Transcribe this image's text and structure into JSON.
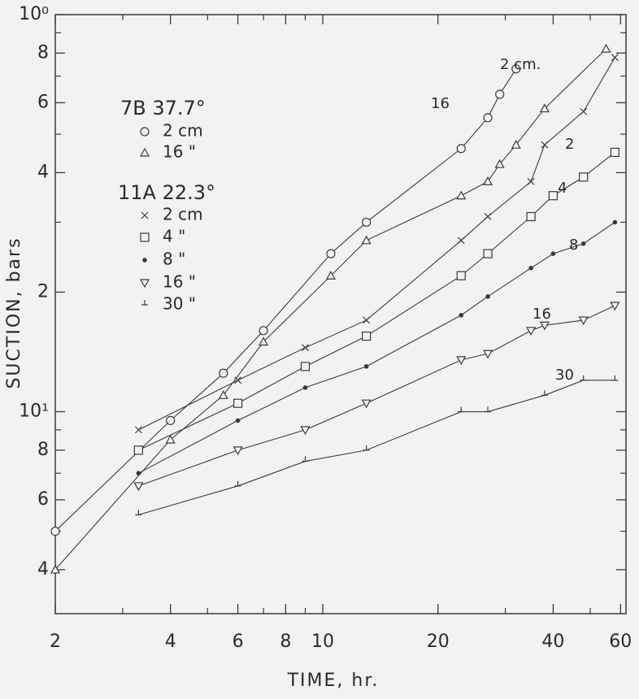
{
  "chart_data": {
    "type": "line",
    "x_label": "TIME, hr.",
    "y_label": "SUCTION, bars",
    "log_x": true,
    "log_y": true,
    "xlim": [
      2,
      62
    ],
    "ylim": [
      3.1,
      100
    ],
    "xticks": [
      2,
      4,
      6,
      8,
      10,
      20,
      40,
      60
    ],
    "xticks_minor": [
      3,
      5,
      7,
      9,
      30,
      50
    ],
    "yticks": [
      4,
      6,
      8,
      {
        "value": 10,
        "label": "10¹"
      },
      {
        "value": 20,
        "label": "2"
      },
      {
        "value": 40,
        "label": "4"
      },
      {
        "value": 60,
        "label": "6"
      },
      {
        "value": 80,
        "label": "8"
      },
      {
        "value": 100,
        "label": "10⁰"
      }
    ],
    "yticks_minor": [
      5,
      7,
      9,
      30,
      50,
      70,
      90
    ],
    "legend_headings": [
      "7B   37.7°",
      "11A   22.3°"
    ],
    "curve_labels": [
      "2 cm.",
      "16",
      "2",
      "4",
      "8",
      "16",
      "30"
    ],
    "color": "#3a3a3a",
    "series": [
      {
        "name": "2 cm",
        "marker": "circle",
        "x": [
          2,
          4,
          5.5,
          7,
          10.5,
          13,
          23,
          27,
          29,
          32
        ],
        "values": [
          5,
          9.5,
          12.5,
          16,
          25,
          30,
          46,
          55,
          63,
          73
        ]
      },
      {
        "name": "16  \"",
        "marker": "triangle",
        "x": [
          2,
          4,
          5.5,
          7,
          10.5,
          13,
          23,
          27,
          29,
          32,
          38,
          55
        ],
        "values": [
          4,
          8.5,
          11,
          15,
          22,
          27,
          35,
          38,
          42,
          47,
          58,
          82
        ]
      },
      {
        "name": "2 cm",
        "marker": "x",
        "x": [
          3.3,
          6,
          9,
          13,
          23,
          27,
          35,
          38,
          48,
          58
        ],
        "values": [
          9,
          12,
          14.5,
          17,
          27,
          31,
          38,
          47,
          57,
          78
        ]
      },
      {
        "name": "4   \"",
        "marker": "square",
        "x": [
          3.3,
          6,
          9,
          13,
          23,
          27,
          35,
          40,
          48,
          58
        ],
        "values": [
          8,
          10.5,
          13,
          15.5,
          22,
          25,
          31,
          35,
          39,
          45
        ]
      },
      {
        "name": "8   \"",
        "marker": "dot",
        "x": [
          3.3,
          6,
          9,
          13,
          23,
          27,
          35,
          40,
          48,
          58
        ],
        "values": [
          7,
          9.5,
          11.5,
          13,
          17.5,
          19.5,
          23,
          25,
          26.5,
          30
        ]
      },
      {
        "name": "16  \"",
        "marker": "triangle-down",
        "x": [
          3.3,
          6,
          9,
          13,
          23,
          27,
          35,
          38,
          48,
          58
        ],
        "values": [
          6.5,
          8,
          9,
          10.5,
          13.5,
          14,
          16,
          16.5,
          17,
          18.5
        ]
      },
      {
        "name": "30  \"",
        "marker": "tick",
        "x": [
          3.3,
          6,
          9,
          13,
          23,
          27,
          38,
          48,
          58
        ],
        "values": [
          5.5,
          6.5,
          7.5,
          8,
          10,
          10,
          11,
          12,
          12
        ]
      }
    ]
  }
}
